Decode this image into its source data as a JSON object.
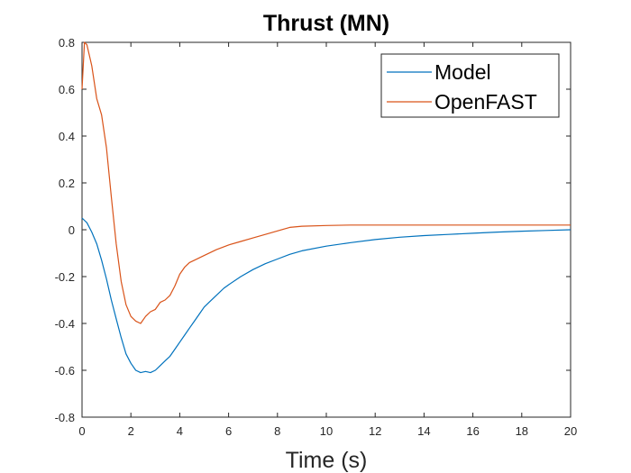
{
  "chart_data": {
    "type": "line",
    "title": "Thrust (MN)",
    "xlabel": "Time (s)",
    "ylabel": "",
    "xlim": [
      0,
      20
    ],
    "ylim": [
      -0.8,
      0.8
    ],
    "xticks": [
      0,
      2,
      4,
      6,
      8,
      10,
      12,
      14,
      16,
      18,
      20
    ],
    "xtick_labels": [
      "0",
      "2",
      "4",
      "6",
      "8",
      "10",
      "12",
      "14",
      "16",
      "18",
      "20"
    ],
    "yticks": [
      -0.8,
      -0.6,
      -0.4,
      -0.2,
      0,
      0.2,
      0.4,
      0.6,
      0.8
    ],
    "ytick_labels": [
      "-0.8",
      "-0.6",
      "-0.4",
      "-0.2",
      "0",
      "0.2",
      "0.4",
      "0.6",
      "0.8"
    ],
    "grid": false,
    "legend_position": "top-right",
    "series": [
      {
        "name": "Model",
        "color": "#0072BD",
        "x": [
          0,
          0.2,
          0.4,
          0.6,
          0.8,
          1.0,
          1.2,
          1.4,
          1.6,
          1.8,
          2.0,
          2.2,
          2.4,
          2.6,
          2.8,
          3.0,
          3.2,
          3.4,
          3.6,
          3.8,
          4.0,
          4.2,
          4.4,
          4.6,
          4.8,
          5.0,
          5.2,
          5.4,
          5.6,
          5.8,
          6.0,
          6.5,
          7.0,
          7.5,
          8.0,
          8.5,
          9.0,
          10,
          11,
          12,
          13,
          14,
          15,
          16,
          17,
          18,
          19,
          20
        ],
        "y": [
          0.05,
          0.03,
          -0.01,
          -0.06,
          -0.13,
          -0.21,
          -0.3,
          -0.38,
          -0.46,
          -0.53,
          -0.57,
          -0.6,
          -0.61,
          -0.605,
          -0.61,
          -0.6,
          -0.58,
          -0.56,
          -0.54,
          -0.51,
          -0.48,
          -0.45,
          -0.42,
          -0.39,
          -0.36,
          -0.33,
          -0.31,
          -0.29,
          -0.27,
          -0.25,
          -0.235,
          -0.2,
          -0.17,
          -0.145,
          -0.125,
          -0.105,
          -0.09,
          -0.07,
          -0.055,
          -0.042,
          -0.032,
          -0.025,
          -0.02,
          -0.015,
          -0.01,
          -0.006,
          -0.003,
          0.0
        ]
      },
      {
        "name": "OpenFAST",
        "color": "#D95319",
        "x": [
          0,
          0.1,
          0.2,
          0.4,
          0.6,
          0.8,
          1.0,
          1.2,
          1.4,
          1.6,
          1.8,
          2.0,
          2.2,
          2.4,
          2.6,
          2.8,
          3.0,
          3.2,
          3.4,
          3.6,
          3.8,
          4.0,
          4.2,
          4.4,
          4.6,
          4.8,
          5.0,
          5.5,
          6.0,
          6.5,
          7.0,
          7.5,
          8.0,
          8.5,
          9.0,
          10,
          11,
          12,
          13,
          14,
          15,
          16,
          17,
          18,
          19,
          20
        ],
        "y": [
          0.6,
          0.8,
          0.79,
          0.7,
          0.56,
          0.49,
          0.35,
          0.14,
          -0.06,
          -0.22,
          -0.32,
          -0.37,
          -0.39,
          -0.4,
          -0.37,
          -0.35,
          -0.34,
          -0.31,
          -0.3,
          -0.28,
          -0.24,
          -0.19,
          -0.16,
          -0.14,
          -0.13,
          -0.12,
          -0.11,
          -0.085,
          -0.065,
          -0.05,
          -0.035,
          -0.02,
          -0.005,
          0.01,
          0.015,
          0.018,
          0.02,
          0.02,
          0.02,
          0.02,
          0.02,
          0.02,
          0.02,
          0.02,
          0.02,
          0.02
        ]
      }
    ]
  }
}
